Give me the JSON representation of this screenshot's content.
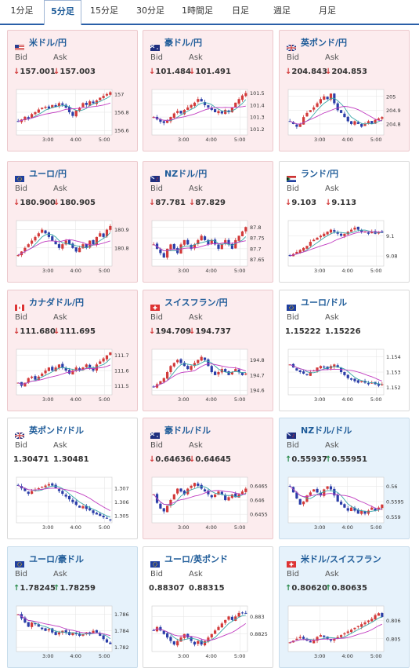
{
  "tabs": [
    "1分足",
    "5分足",
    "15分足",
    "30分足",
    "1時間足",
    "日足",
    "週足",
    "月足"
  ],
  "active_tab": 1,
  "labels": {
    "bid": "Bid",
    "ask": "Ask"
  },
  "colors": {
    "up_candle": "#d23a3a",
    "down_candle": "#2b3ea8",
    "ma_short": "#3aa8a8",
    "ma_long": "#c03ac0"
  },
  "x_ticks": [
    "3:00",
    "4:00",
    "5:00"
  ],
  "pairs": [
    {
      "name": "米ドル/円",
      "flag": "us",
      "bid": "157.001",
      "ask": "157.003",
      "bid_dir": "down",
      "ask_dir": "down",
      "status": "down",
      "yticks": [
        "157",
        "156.8",
        "156.6"
      ],
      "yvals": [
        157,
        156.8,
        156.6
      ],
      "ylim": [
        156.55,
        157.05
      ],
      "path": [
        156.7,
        156.72,
        156.75,
        156.73,
        156.78,
        156.8,
        156.83,
        156.85,
        156.86,
        156.84,
        156.88,
        156.86,
        156.9,
        156.88,
        156.85,
        156.8,
        156.76,
        156.82,
        156.85,
        156.9,
        156.88,
        156.92,
        156.9,
        156.93,
        156.96,
        156.98,
        157.0,
        157.02
      ]
    },
    {
      "name": "豪ドル/円",
      "flag": "au",
      "bid": "101.484",
      "ask": "101.491",
      "bid_dir": "down",
      "ask_dir": "down",
      "status": "down",
      "yticks": [
        "101.5",
        "101.4",
        "101.3",
        "101.2"
      ],
      "yvals": [
        101.5,
        101.4,
        101.3,
        101.2
      ],
      "ylim": [
        101.15,
        101.53
      ],
      "path": [
        101.3,
        101.28,
        101.26,
        101.25,
        101.27,
        101.3,
        101.33,
        101.35,
        101.33,
        101.36,
        101.38,
        101.4,
        101.42,
        101.45,
        101.43,
        101.4,
        101.38,
        101.36,
        101.34,
        101.35,
        101.33,
        101.36,
        101.34,
        101.38,
        101.42,
        101.45,
        101.48,
        101.5
      ]
    },
    {
      "name": "英ポンド/円",
      "flag": "gb",
      "bid": "204.843",
      "ask": "204.853",
      "bid_dir": "down",
      "ask_dir": "down",
      "status": "down",
      "yticks": [
        "205",
        "204.9",
        "204.8"
      ],
      "yvals": [
        205,
        204.9,
        204.8
      ],
      "ylim": [
        204.72,
        205.05
      ],
      "path": [
        204.82,
        204.8,
        204.78,
        204.8,
        204.85,
        204.88,
        204.9,
        204.92,
        204.95,
        204.98,
        205.0,
        204.98,
        205.02,
        204.95,
        204.9,
        204.88,
        204.85,
        204.82,
        204.8,
        204.82,
        204.8,
        204.78,
        204.8,
        204.82,
        204.8,
        204.83,
        204.84,
        204.85
      ]
    },
    {
      "name": "ユーロ/円",
      "flag": "eu",
      "bid": "180.900",
      "ask": "180.905",
      "bid_dir": "down",
      "ask_dir": "down",
      "status": "down",
      "yticks": [
        "180.9",
        "180.8"
      ],
      "yvals": [
        180.9,
        180.8
      ],
      "ylim": [
        180.7,
        180.95
      ],
      "path": [
        180.76,
        180.78,
        180.8,
        180.82,
        180.84,
        180.86,
        180.88,
        180.9,
        180.88,
        180.86,
        180.84,
        180.82,
        180.8,
        180.82,
        180.84,
        180.82,
        180.8,
        180.78,
        180.8,
        180.82,
        180.8,
        180.84,
        180.82,
        180.86,
        180.88,
        180.86,
        180.9,
        180.92
      ]
    },
    {
      "name": "NZドル/円",
      "flag": "nz",
      "bid": "87.781",
      "ask": "87.829",
      "bid_dir": "down",
      "ask_dir": "down",
      "status": "down",
      "yticks": [
        "87.8",
        "87.75",
        "87.7",
        "87.65"
      ],
      "yvals": [
        87.8,
        87.75,
        87.7,
        87.65
      ],
      "ylim": [
        87.62,
        87.83
      ],
      "path": [
        87.72,
        87.7,
        87.68,
        87.66,
        87.7,
        87.72,
        87.7,
        87.68,
        87.72,
        87.74,
        87.72,
        87.7,
        87.72,
        87.74,
        87.76,
        87.74,
        87.72,
        87.74,
        87.72,
        87.7,
        87.72,
        87.74,
        87.72,
        87.7,
        87.74,
        87.76,
        87.78,
        87.8
      ]
    },
    {
      "name": "ランド/円",
      "flag": "za",
      "bid": "9.103",
      "ask": "9.113",
      "bid_dir": "down",
      "ask_dir": "down",
      "status": "flat",
      "yticks": [
        "9.1",
        "9.08"
      ],
      "yvals": [
        9.1,
        9.08
      ],
      "ylim": [
        9.07,
        9.115
      ],
      "path": [
        9.08,
        9.082,
        9.084,
        9.086,
        9.088,
        9.09,
        9.094,
        9.096,
        9.098,
        9.1,
        9.102,
        9.104,
        9.106,
        9.104,
        9.102,
        9.1,
        9.102,
        9.104,
        9.106,
        9.108,
        9.106,
        9.104,
        9.104,
        9.102,
        9.104,
        9.102,
        9.104,
        9.103
      ]
    },
    {
      "name": "カナダドル/円",
      "flag": "ca",
      "bid": "111.680",
      "ask": "111.695",
      "bid_dir": "down",
      "ask_dir": "down",
      "status": "down",
      "yticks": [
        "111.7",
        "111.6",
        "111.5"
      ],
      "yvals": [
        111.7,
        111.6,
        111.5
      ],
      "ylim": [
        111.44,
        111.74
      ],
      "path": [
        111.52,
        111.5,
        111.52,
        111.55,
        111.56,
        111.54,
        111.56,
        111.58,
        111.6,
        111.62,
        111.6,
        111.62,
        111.64,
        111.62,
        111.6,
        111.58,
        111.6,
        111.62,
        111.6,
        111.62,
        111.64,
        111.62,
        111.6,
        111.64,
        111.66,
        111.68,
        111.7,
        111.72
      ]
    },
    {
      "name": "スイスフラン/円",
      "flag": "ch",
      "bid": "194.709",
      "ask": "194.737",
      "bid_dir": "down",
      "ask_dir": "down",
      "status": "down",
      "yticks": [
        "194.8",
        "194.7",
        "194.6"
      ],
      "yvals": [
        194.8,
        194.7,
        194.6
      ],
      "ylim": [
        194.57,
        194.87
      ],
      "path": [
        194.62,
        194.64,
        194.66,
        194.68,
        194.72,
        194.76,
        194.78,
        194.8,
        194.78,
        194.76,
        194.74,
        194.76,
        194.78,
        194.8,
        194.82,
        194.8,
        194.76,
        194.72,
        194.7,
        194.72,
        194.74,
        194.72,
        194.7,
        194.72,
        194.74,
        194.72,
        194.7,
        194.71
      ]
    },
    {
      "name": "ユーロ/ドル",
      "flag": "eu",
      "bid": "1.15222",
      "ask": "1.15226",
      "bid_dir": "none",
      "ask_dir": "none",
      "status": "flat",
      "yticks": [
        "1.154",
        "1.153",
        "1.152"
      ],
      "yvals": [
        1.154,
        1.153,
        1.152
      ],
      "ylim": [
        1.1515,
        1.1545
      ],
      "path": [
        1.1535,
        1.1533,
        1.1531,
        1.153,
        1.1529,
        1.1528,
        1.153,
        1.1531,
        1.1533,
        1.1534,
        1.1533,
        1.1532,
        1.1534,
        1.1535,
        1.1533,
        1.153,
        1.1528,
        1.1526,
        1.1525,
        1.1524,
        1.1523,
        1.1524,
        1.1523,
        1.1522,
        1.1523,
        1.1522,
        1.1521,
        1.1522
      ]
    },
    {
      "name": "英ポンド/ドル",
      "flag": "gb",
      "bid": "1.30471",
      "ask": "1.30481",
      "bid_dir": "none",
      "ask_dir": "none",
      "status": "flat",
      "yticks": [
        "1.307",
        "1.306",
        "1.305"
      ],
      "yvals": [
        1.307,
        1.306,
        1.305
      ],
      "ylim": [
        1.3045,
        1.3078
      ],
      "path": [
        1.3072,
        1.307,
        1.3068,
        1.3066,
        1.3068,
        1.3069,
        1.307,
        1.3071,
        1.3072,
        1.3073,
        1.3072,
        1.307,
        1.3068,
        1.3066,
        1.3064,
        1.3062,
        1.306,
        1.3058,
        1.3056,
        1.3057,
        1.3055,
        1.3054,
        1.3052,
        1.3051,
        1.305,
        1.3049,
        1.3048,
        1.3047
      ]
    },
    {
      "name": "豪ドル/ドル",
      "flag": "au",
      "bid": "0.64636",
      "ask": "0.64645",
      "bid_dir": "down",
      "ask_dir": "down",
      "status": "down",
      "yticks": [
        "0.6465",
        "0.646",
        "0.6455"
      ],
      "yvals": [
        0.6465,
        0.646,
        0.6455
      ],
      "ylim": [
        0.6452,
        0.6468
      ],
      "path": [
        0.6462,
        0.6459,
        0.6457,
        0.6456,
        0.6458,
        0.646,
        0.6462,
        0.6464,
        0.6463,
        0.6462,
        0.6464,
        0.6465,
        0.6466,
        0.6465,
        0.6464,
        0.6463,
        0.6462,
        0.6461,
        0.6462,
        0.6463,
        0.6462,
        0.646,
        0.6461,
        0.6462,
        0.6461,
        0.6462,
        0.6463,
        0.6464
      ]
    },
    {
      "name": "NZドル/ドル",
      "flag": "nz",
      "bid": "0.55937",
      "ask": "0.55951",
      "bid_dir": "up",
      "ask_dir": "up",
      "status": "up",
      "yticks": [
        "0.56",
        "0.5595",
        "0.559"
      ],
      "yvals": [
        0.56,
        0.5595,
        0.559
      ],
      "ylim": [
        0.5588,
        0.5603
      ],
      "path": [
        0.56,
        0.5598,
        0.5596,
        0.5594,
        0.5595,
        0.5597,
        0.5598,
        0.5599,
        0.5598,
        0.5597,
        0.5599,
        0.56,
        0.5599,
        0.5597,
        0.5595,
        0.5594,
        0.5593,
        0.5592,
        0.5593,
        0.5592,
        0.5591,
        0.5592,
        0.5591,
        0.5592,
        0.5593,
        0.5592,
        0.5593,
        0.5594
      ]
    },
    {
      "name": "ユーロ/豪ドル",
      "flag": "eu",
      "bid": "1.78245",
      "ask": "1.78259",
      "bid_dir": "up",
      "ask_dir": "up",
      "status": "up",
      "yticks": [
        "1.786",
        "1.784",
        "1.782"
      ],
      "yvals": [
        1.786,
        1.784,
        1.782
      ],
      "ylim": [
        1.7815,
        1.787
      ],
      "path": [
        1.786,
        1.7855,
        1.785,
        1.7845,
        1.785,
        1.7848,
        1.7845,
        1.7842,
        1.784,
        1.7842,
        1.7838,
        1.7835,
        1.7838,
        1.784,
        1.7838,
        1.7835,
        1.7838,
        1.7836,
        1.7834,
        1.7836,
        1.7838,
        1.7836,
        1.784,
        1.7838,
        1.7834,
        1.783,
        1.7826,
        1.7824
      ]
    },
    {
      "name": "ユーロ/英ポンド",
      "flag": "eu",
      "bid": "0.88307",
      "ask": "0.88315",
      "bid_dir": "none",
      "ask_dir": "none",
      "status": "flat",
      "yticks": [
        "0.883",
        "0.8825"
      ],
      "yvals": [
        0.883,
        0.8825
      ],
      "ylim": [
        0.882,
        0.8833
      ],
      "path": [
        0.8826,
        0.8827,
        0.8826,
        0.8825,
        0.8824,
        0.8823,
        0.8822,
        0.8823,
        0.8824,
        0.8825,
        0.8824,
        0.8823,
        0.8822,
        0.8823,
        0.8822,
        0.8823,
        0.8824,
        0.8825,
        0.8826,
        0.8827,
        0.8828,
        0.8829,
        0.883,
        0.8829,
        0.883,
        0.8831,
        0.8831,
        0.8831
      ]
    },
    {
      "name": "米ドル/スイスフラン",
      "flag": "ch",
      "bid": "0.80620",
      "ask": "0.80635",
      "bid_dir": "up",
      "ask_dir": "up",
      "status": "up",
      "yticks": [
        "0.806",
        "0.805"
      ],
      "yvals": [
        0.806,
        0.805
      ],
      "ylim": [
        0.8043,
        0.8068
      ],
      "path": [
        0.8048,
        0.8049,
        0.805,
        0.8051,
        0.805,
        0.8049,
        0.8048,
        0.8049,
        0.8051,
        0.8052,
        0.8051,
        0.805,
        0.8049,
        0.805,
        0.8051,
        0.8052,
        0.8053,
        0.8054,
        0.8055,
        0.8056,
        0.8057,
        0.8058,
        0.8059,
        0.806,
        0.8061,
        0.8063,
        0.8064,
        0.8062
      ]
    }
  ]
}
